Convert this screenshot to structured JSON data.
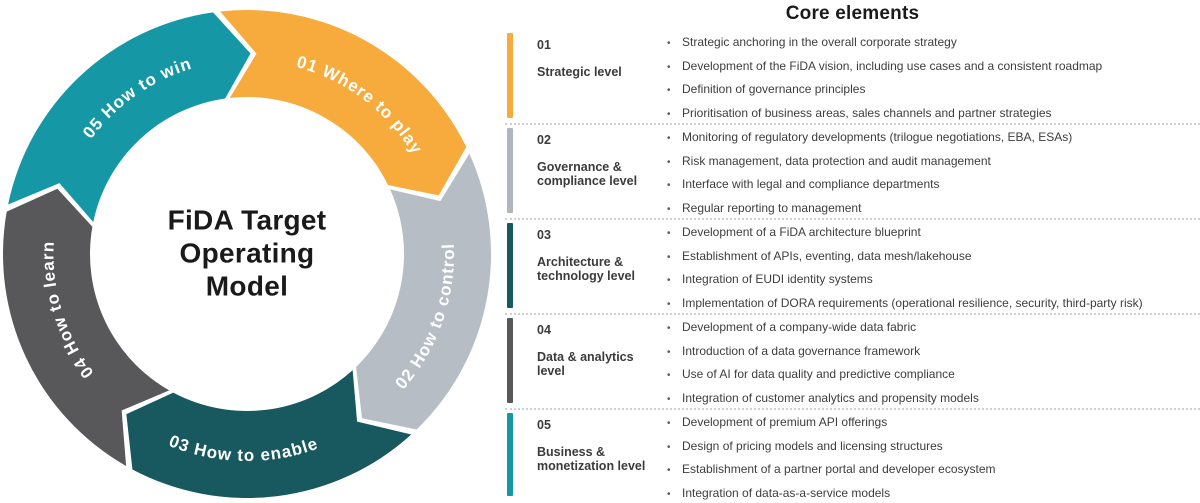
{
  "wheel": {
    "center_title_lines": [
      "FiDA Target",
      "Operating",
      "Model"
    ],
    "segments": [
      {
        "id": "01",
        "label": "01 Where to play",
        "color": "#F6AB3C",
        "start": -8,
        "end": 64,
        "text_mode": "outer"
      },
      {
        "id": "02",
        "label": "02 How to control",
        "color": "#B6BDC5",
        "start": 64,
        "end": 136,
        "text_mode": "inner"
      },
      {
        "id": "03",
        "label": "03 How to enable",
        "color": "#17595E",
        "start": 136,
        "end": 208,
        "text_mode": "inner"
      },
      {
        "id": "04",
        "label": "04 How to learn",
        "color": "#58585A",
        "start": 208,
        "end": 280,
        "text_mode": "outer"
      },
      {
        "id": "05",
        "label": "05 How to win",
        "color": "#1697A6",
        "start": 280,
        "end": 352,
        "text_mode": "outer"
      }
    ]
  },
  "panel": {
    "title": "Core elements",
    "bullet_glyph": "•",
    "sections": [
      {
        "number": "01",
        "title": "Strategic level",
        "color": "#F6AB3C",
        "bullets": [
          "Strategic anchoring in the overall corporate strategy",
          "Development of the FiDA vision, including use cases and a consistent roadmap",
          "Definition of governance principles",
          "Prioritisation of business areas, sales channels and partner strategies"
        ]
      },
      {
        "number": "02",
        "title": "Governance & compliance level",
        "color": "#AEB5BC",
        "bullets": [
          "Monitoring of regulatory developments (trilogue negotiations, EBA, ESAs)",
          "Risk management, data protection and audit management",
          "Interface with legal and compliance departments",
          "Regular reporting to management"
        ]
      },
      {
        "number": "03",
        "title": "Architecture & technology level",
        "color": "#17595E",
        "bullets": [
          "Development of a FiDA architecture blueprint",
          "Establishment of APIs, eventing, data mesh/lakehouse",
          "Integration of EUDI identity systems",
          "Implementation of DORA requirements (operational resilience, security, third-party risk)"
        ]
      },
      {
        "number": "04",
        "title": "Data & analytics level",
        "color": "#58585A",
        "bullets": [
          "Development of a company-wide data fabric",
          "Introduction of a data governance framework",
          "Use of AI for data quality and predictive compliance",
          "Integration of customer analytics and propensity models"
        ]
      },
      {
        "number": "05",
        "title": "Business & monetization level",
        "color": "#1697A6",
        "bullets": [
          "Development of premium API offerings",
          "Design of pricing models and licensing structures",
          "Establishment of a partner portal and developer ecosystem",
          "Integration of data-as-a-service models"
        ]
      }
    ]
  }
}
